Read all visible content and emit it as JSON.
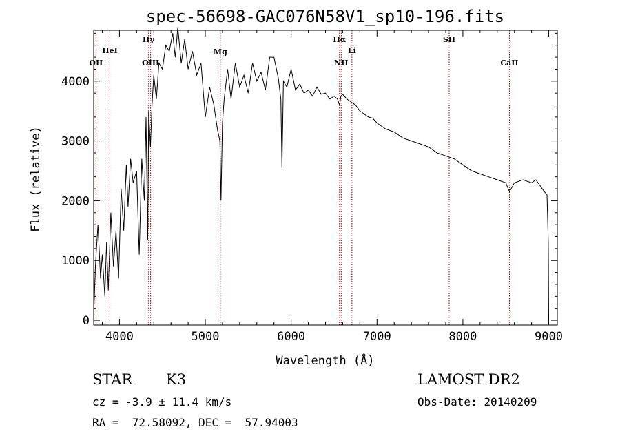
{
  "chart_data": {
    "type": "line",
    "title": "spec-56698-GAC076N58V1_sp10-196.fits",
    "xlabel": "Wavelength (Å)",
    "ylabel": "Flux (relative)",
    "xlim": [
      3700,
      9100
    ],
    "ylim": [
      -80,
      4850
    ],
    "x_ticks": [
      4000,
      5000,
      6000,
      7000,
      8000,
      9000
    ],
    "y_ticks": [
      0,
      1000,
      2000,
      3000,
      4000
    ],
    "grid": false,
    "series": [
      {
        "x": [
          3700,
          3720,
          3750,
          3780,
          3800,
          3830,
          3850,
          3870,
          3900,
          3930,
          3960,
          3990,
          4020,
          4050,
          4080,
          4100,
          4130,
          4160,
          4200,
          4230,
          4260,
          4290,
          4310,
          4330,
          4340,
          4360,
          4380,
          4400,
          4430,
          4460,
          4500,
          4540,
          4580,
          4620,
          4650,
          4680,
          4720,
          4760,
          4800,
          4850,
          4900,
          4950,
          5000,
          5050,
          5100,
          5140,
          5170,
          5183,
          5200,
          5220,
          5260,
          5300,
          5350,
          5400,
          5450,
          5500,
          5550,
          5600,
          5650,
          5700,
          5750,
          5800,
          5850,
          5880,
          5893,
          5910,
          5950,
          6000,
          6050,
          6100,
          6150,
          6200,
          6250,
          6300,
          6350,
          6400,
          6450,
          6500,
          6540,
          6563,
          6580,
          6600,
          6650,
          6700,
          6750,
          6800,
          6850,
          6900,
          6950,
          7000,
          7100,
          7200,
          7300,
          7400,
          7500,
          7600,
          7700,
          7800,
          7900,
          8000,
          8100,
          8200,
          8300,
          8400,
          8500,
          8542,
          8600,
          8700,
          8800,
          8850,
          8900,
          8950,
          8980,
          8995,
          9000
        ],
        "y": [
          50,
          900,
          1600,
          700,
          1100,
          400,
          1300,
          500,
          1800,
          900,
          1500,
          700,
          2200,
          1500,
          2600,
          1900,
          2700,
          2300,
          2500,
          1100,
          2700,
          2000,
          3400,
          1350,
          3500,
          2900,
          3600,
          4100,
          3700,
          4300,
          4200,
          4600,
          4500,
          4800,
          4400,
          4900,
          4300,
          4700,
          4200,
          4500,
          4100,
          4300,
          3400,
          3900,
          3600,
          3200,
          3000,
          2000,
          3300,
          3700,
          4200,
          3700,
          4300,
          3900,
          4100,
          3800,
          4300,
          4000,
          4150,
          3850,
          4400,
          4400,
          4050,
          3700,
          2550,
          4000,
          3900,
          4200,
          3850,
          3950,
          3800,
          3850,
          3750,
          3900,
          3780,
          3800,
          3700,
          3750,
          3700,
          3600,
          3750,
          3780,
          3700,
          3650,
          3600,
          3500,
          3450,
          3400,
          3380,
          3300,
          3200,
          3150,
          3050,
          3000,
          2950,
          2900,
          2800,
          2750,
          2700,
          2600,
          2500,
          2450,
          2400,
          2350,
          2300,
          2150,
          2300,
          2350,
          2300,
          2350,
          2250,
          2150,
          2100,
          1300,
          0
        ]
      }
    ],
    "spectral_lines": [
      {
        "name": "OII",
        "x": 3727
      },
      {
        "name": "HeI",
        "x": 3889
      },
      {
        "name": "Hγ",
        "x": 4340
      },
      {
        "name": "OIII",
        "x": 4363
      },
      {
        "name": "Mg",
        "x": 5175
      },
      {
        "name": "Hα",
        "x": 6563
      },
      {
        "name": "NII",
        "x": 6583
      },
      {
        "name": "Li",
        "x": 6708
      },
      {
        "name": "SII",
        "x": 7840
      },
      {
        "name": "CaII",
        "x": 8542
      }
    ],
    "line_color": "#000000",
    "marker_color": "#a00000"
  },
  "info": {
    "object_class": "STAR",
    "subclass": "K3",
    "survey": "LAMOST DR2",
    "cz": "cz = -3.9 ± 11.4 km/s",
    "obs_date": "Obs-Date: 20140209",
    "coords": "RA =  72.58092, DEC =  57.94003"
  }
}
